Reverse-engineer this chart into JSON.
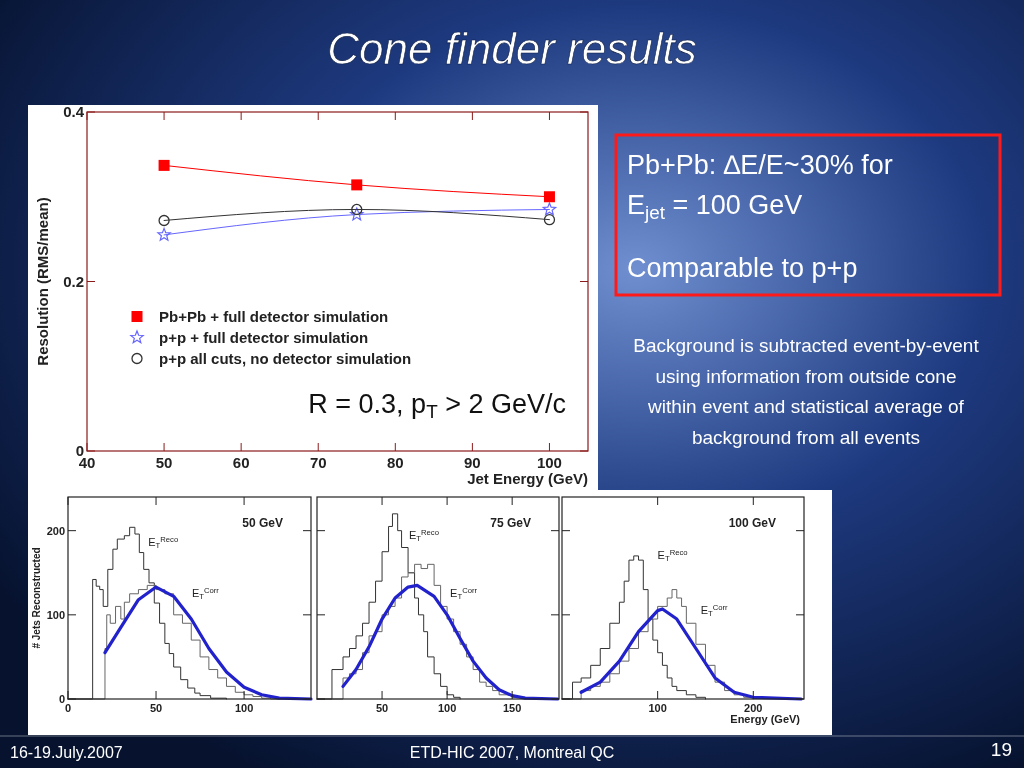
{
  "chart_data": [
    {
      "type": "line",
      "title": "Cone finder results",
      "xlabel": "Jet Energy (GeV)",
      "ylabel": "Resolution (RMS/mean)",
      "x": [
        50,
        75,
        100
      ],
      "xlim": [
        40,
        105
      ],
      "xticks": [
        40,
        50,
        60,
        70,
        80,
        90,
        100
      ],
      "ylim": [
        0,
        0.4
      ],
      "yticks": [
        0,
        0.2,
        0.4
      ],
      "legend": "bottom left",
      "series": [
        {
          "name": "Pb+Pb + full detector simulation",
          "color": "#ff0000",
          "marker": "square",
          "values": [
            0.337,
            0.314,
            0.3
          ]
        },
        {
          "name": "p+p + full detector simulation",
          "color": "#6666ff",
          "marker": "star",
          "values": [
            0.255,
            0.279,
            0.285
          ]
        },
        {
          "name": "p+p all cuts, no detector simulation",
          "color": "#333333",
          "marker": "circle",
          "values": [
            0.272,
            0.285,
            0.273
          ]
        }
      ],
      "annotations": [
        "R = 0.3, p$_{T}$ > 2 GeV/c",
        "Pb+Pb: ∆E/E~30% for",
        "E$_{jet}$ = 100 GeV",
        "Comparable to p+p",
        "Background is subtracted event-by-event using information from outside cone within event and statistical average of background from all events",
        "16-19.July.2007",
        "ETD-HIC 2007, Montreal QC",
        "19"
      ]
    },
    {
      "type": "step",
      "ylabel": "# Jets Reconstructed",
      "xlim": [
        0,
        138
      ],
      "xticks": [
        0,
        50,
        100
      ],
      "ylim": [
        0,
        240
      ],
      "yticks": [
        0,
        100,
        200
      ],
      "series": [
        {
          "color": "#333333",
          "x": [
            0,
            14,
            16,
            18,
            20,
            22.6,
            25.5,
            28,
            32,
            35,
            38,
            40.5,
            43,
            46,
            49,
            52,
            55,
            57.5,
            60,
            64,
            68,
            72,
            75,
            81,
            90
          ],
          "values": [
            0,
            142,
            134,
            130,
            110,
            154,
            178,
            190,
            194,
            204,
            196,
            174,
            154,
            138,
            114,
            90,
            66,
            54,
            38,
            23,
            13,
            7,
            4,
            1,
            0
          ]
        },
        {
          "color": "#666666",
          "x": [
            0,
            21,
            22,
            24,
            27,
            30,
            32,
            35,
            40,
            45,
            50,
            55,
            60,
            65,
            70,
            75,
            80,
            85,
            90,
            95,
            100,
            105,
            110,
            115,
            120
          ],
          "values": [
            0,
            60,
            100,
            90,
            110,
            95,
            115,
            125,
            130,
            135,
            130,
            125,
            100,
            90,
            70,
            50,
            35,
            25,
            15,
            8,
            5,
            3,
            1,
            0,
            0
          ]
        },
        {
          "type": "line",
          "color": "#2222cc",
          "x": [
            21,
            30,
            40,
            50,
            60,
            70,
            80,
            90,
            100,
            110,
            120,
            138
          ],
          "values": [
            55,
            85,
            118,
            133,
            122,
            95,
            60,
            32,
            14,
            5,
            1,
            0
          ]
        }
      ],
      "annotations": [
        "50 GeV",
        "E$_{T}$$^{Reco}$",
        "E$_{T}$$^{Corr}$"
      ]
    },
    {
      "type": "step",
      "tick_labels": "x",
      "xlim": [
        0,
        186
      ],
      "xticks": [
        50,
        100,
        150
      ],
      "ylim": [
        0,
        240
      ],
      "yticks": [
        0,
        100,
        200
      ],
      "series": [
        {
          "color": "#333333",
          "x": [
            0,
            11.5,
            20,
            25,
            30,
            35,
            40,
            45,
            50,
            55,
            58,
            62,
            65,
            70,
            75,
            78,
            82,
            85,
            90,
            95,
            100,
            105,
            110
          ],
          "values": [
            0,
            35,
            50,
            60,
            75,
            90,
            115,
            140,
            175,
            205,
            220,
            200,
            180,
            150,
            120,
            100,
            80,
            50,
            30,
            15,
            5,
            2,
            0
          ]
        },
        {
          "color": "#666666",
          "x": [
            0,
            20,
            25,
            30,
            35,
            40,
            45,
            50,
            55,
            60,
            65,
            70,
            75,
            80,
            85,
            90,
            95,
            100,
            105,
            110,
            115,
            120,
            125,
            130,
            135,
            140,
            150,
            160
          ],
          "values": [
            0,
            25,
            30,
            35,
            55,
            75,
            80,
            100,
            110,
            120,
            145,
            150,
            160,
            155,
            160,
            135,
            110,
            95,
            80,
            65,
            50,
            35,
            20,
            15,
            10,
            5,
            2,
            0
          ]
        },
        {
          "type": "line",
          "color": "#2222cc",
          "x": [
            20,
            30,
            40,
            50,
            60,
            70,
            77,
            90,
            100,
            110,
            120,
            130,
            140,
            150,
            160,
            185
          ],
          "values": [
            15,
            35,
            62,
            95,
            120,
            133,
            135,
            122,
            100,
            72,
            45,
            25,
            11,
            4,
            1,
            0
          ]
        }
      ],
      "annotations": [
        "75 GeV",
        "E$_{T}$$^{Reco}$",
        "E$_{T}$$^{Corr}$"
      ]
    },
    {
      "type": "step",
      "tick_labels": "x",
      "xlabel": "Energy (GeV)",
      "xlim": [
        0,
        253
      ],
      "xticks": [
        100,
        200
      ],
      "ylim": [
        0,
        240
      ],
      "yticks": [
        0,
        100,
        200
      ],
      "series": [
        {
          "color": "#333333",
          "x": [
            0,
            11,
            20,
            30,
            40,
            50,
            60,
            65,
            70,
            75,
            80,
            85,
            90,
            95,
            100,
            105,
            110,
            115,
            120,
            130,
            140,
            150
          ],
          "values": [
            0,
            20,
            25,
            40,
            60,
            90,
            115,
            140,
            165,
            170,
            165,
            130,
            95,
            70,
            55,
            40,
            25,
            15,
            10,
            5,
            2,
            0
          ]
        },
        {
          "color": "#666666",
          "x": [
            0,
            20,
            30,
            40,
            50,
            60,
            70,
            80,
            90,
            100,
            110,
            115,
            120,
            125,
            130,
            140,
            150,
            160,
            170,
            180,
            190,
            200
          ],
          "values": [
            0,
            10,
            15,
            20,
            30,
            45,
            60,
            80,
            95,
            110,
            120,
            130,
            120,
            110,
            90,
            65,
            40,
            20,
            10,
            5,
            2,
            0
          ]
        },
        {
          "type": "line",
          "color": "#2222cc",
          "x": [
            20,
            40,
            60,
            80,
            100,
            105,
            120,
            140,
            160,
            180,
            200,
            250
          ],
          "values": [
            8,
            20,
            45,
            80,
            105,
            107,
            95,
            60,
            25,
            8,
            2,
            0
          ]
        }
      ],
      "annotations": [
        "100 GeV",
        "E$_{T}$$^{Reco}$",
        "E$_{T}$$^{Corr}$"
      ]
    }
  ]
}
